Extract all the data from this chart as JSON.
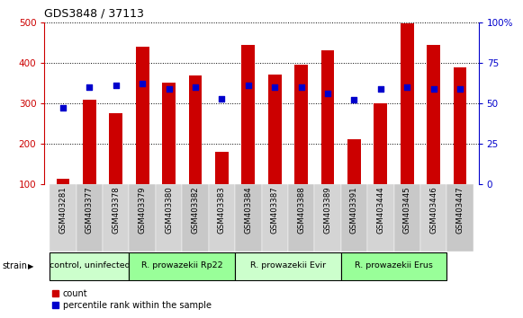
{
  "title": "GDS3848 / 37113",
  "samples": [
    "GSM403281",
    "GSM403377",
    "GSM403378",
    "GSM403379",
    "GSM403380",
    "GSM403382",
    "GSM403383",
    "GSM403384",
    "GSM403387",
    "GSM403388",
    "GSM403389",
    "GSM403391",
    "GSM403444",
    "GSM403445",
    "GSM403446",
    "GSM403447"
  ],
  "counts": [
    115,
    310,
    275,
    440,
    352,
    368,
    180,
    445,
    370,
    395,
    430,
    212,
    300,
    498,
    445,
    388
  ],
  "percentiles": [
    47,
    60,
    61,
    62,
    59,
    60,
    53,
    61,
    60,
    60,
    56,
    52,
    59,
    60,
    59,
    59
  ],
  "groups": [
    {
      "label": "control, uninfected",
      "start": 0,
      "end": 3
    },
    {
      "label": "R. prowazekii Rp22",
      "start": 3,
      "end": 7
    },
    {
      "label": "R. prowazekii Evir",
      "start": 7,
      "end": 11
    },
    {
      "label": "R. prowazekii Erus",
      "start": 11,
      "end": 15
    }
  ],
  "group_colors": [
    "#ccffcc",
    "#99ff99",
    "#ccffcc",
    "#99ff99"
  ],
  "ylim_left": [
    100,
    500
  ],
  "ylim_right": [
    0,
    100
  ],
  "yticks_left": [
    100,
    200,
    300,
    400,
    500
  ],
  "yticks_right": [
    0,
    25,
    50,
    75,
    100
  ],
  "bar_color": "#cc0000",
  "dot_color": "#0000cc",
  "bar_width": 0.5,
  "legend_items": [
    "count",
    "percentile rank within the sample"
  ]
}
